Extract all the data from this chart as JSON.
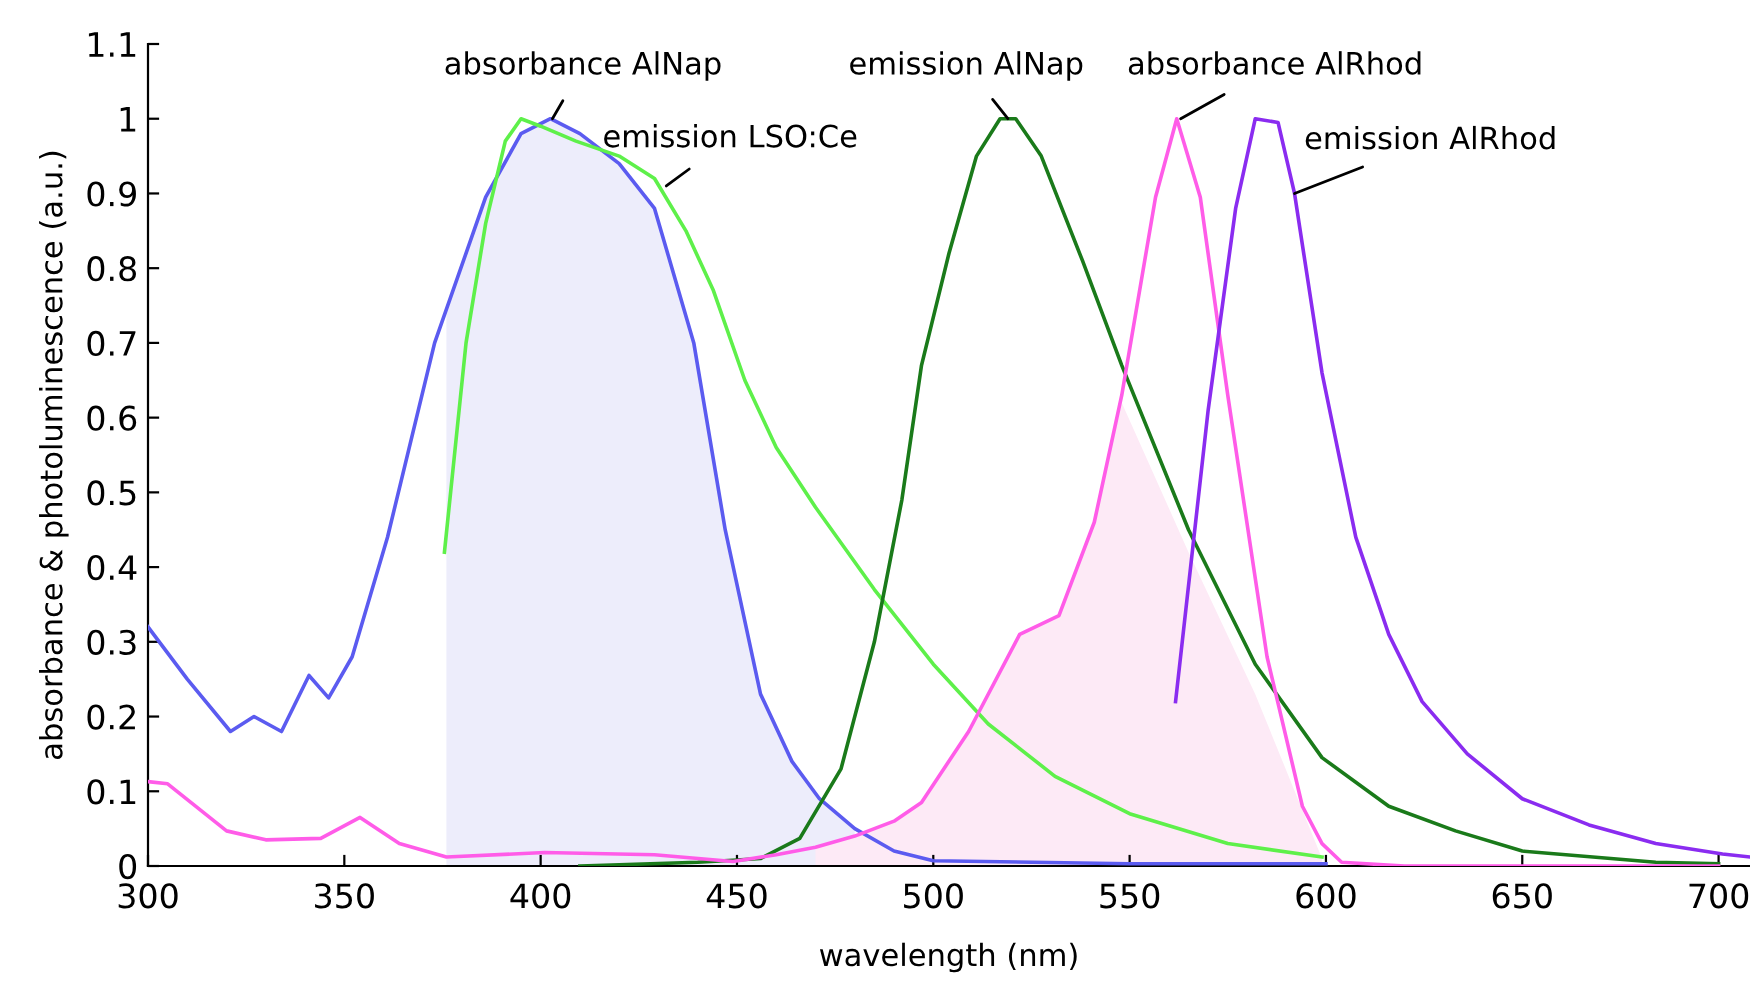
{
  "chart_data": {
    "type": "line",
    "xlabel": "wavelength (nm)",
    "ylabel": "absorbance & photoluminescence (a.u.)",
    "xlim": [
      300,
      708
    ],
    "ylim": [
      0,
      1.1
    ],
    "xticks": [
      300,
      350,
      400,
      450,
      500,
      550,
      600,
      650,
      700
    ],
    "yticks": [
      0,
      0.1,
      0.2,
      0.3,
      0.4,
      0.5,
      0.6,
      0.7,
      0.8,
      0.9,
      1,
      1.1
    ],
    "grid": false,
    "marker": "none",
    "line_style": "solid",
    "series": [
      {
        "type": "area",
        "color": "#ededfb",
        "x": [
          376,
          386,
          395,
          402.5,
          410,
          420,
          429,
          439,
          447,
          456,
          464,
          471,
          480
        ],
        "values": [
          0.75,
          0.895,
          0.98,
          1.0,
          0.98,
          0.94,
          0.88,
          0.7,
          0.45,
          0.23,
          0.14,
          0.09,
          0.05
        ]
      },
      {
        "type": "area",
        "color": "#fdeaf6",
        "x": [
          470,
          480,
          490,
          497,
          509,
          522,
          532,
          541,
          548,
          565,
          582,
          599
        ],
        "values": [
          0.025,
          0.04,
          0.06,
          0.085,
          0.18,
          0.31,
          0.335,
          0.46,
          0.62,
          0.42,
          0.23,
          0.01
        ]
      },
      {
        "color": "#5b5bf0",
        "x": [
          300,
          310,
          321,
          327,
          334,
          341,
          346,
          352,
          361,
          373,
          386,
          395,
          402.5,
          410,
          420,
          429,
          439,
          447,
          456,
          464,
          471,
          480,
          490,
          500,
          550,
          600
        ],
        "values": [
          0.32,
          0.25,
          0.18,
          0.2,
          0.18,
          0.255,
          0.225,
          0.28,
          0.44,
          0.7,
          0.895,
          0.98,
          1.0,
          0.98,
          0.94,
          0.88,
          0.7,
          0.45,
          0.23,
          0.14,
          0.09,
          0.05,
          0.02,
          0.007,
          0.003,
          0.003
        ]
      },
      {
        "color": "#5ef04a",
        "x": [
          375.5,
          381,
          386,
          391,
          395,
          400,
          409,
          420,
          429,
          437,
          444,
          452,
          460,
          470,
          485,
          500,
          514,
          531,
          550,
          575,
          599
        ],
        "values": [
          0.42,
          0.7,
          0.86,
          0.97,
          1.0,
          0.99,
          0.97,
          0.95,
          0.92,
          0.85,
          0.77,
          0.65,
          0.56,
          0.48,
          0.37,
          0.27,
          0.19,
          0.12,
          0.07,
          0.03,
          0.012
        ]
      },
      {
        "color": "#1a7a1a",
        "x": [
          410,
          440,
          450,
          456,
          466,
          476.5,
          485,
          492,
          497,
          504,
          511,
          517,
          521,
          527.5,
          538,
          548,
          565,
          582,
          599,
          616,
          633,
          650,
          684,
          700
        ],
        "values": [
          0,
          0.005,
          0.008,
          0.01,
          0.037,
          0.13,
          0.3,
          0.49,
          0.67,
          0.82,
          0.95,
          1.0,
          1.0,
          0.95,
          0.81,
          0.67,
          0.45,
          0.27,
          0.145,
          0.08,
          0.047,
          0.02,
          0.005,
          0.003
        ]
      },
      {
        "color": "#ff5ce8",
        "x": [
          300,
          305,
          320,
          330,
          344,
          354,
          364,
          376,
          401,
          429,
          449,
          460,
          470,
          480,
          490,
          497,
          509,
          522,
          532,
          541,
          548,
          556.6,
          562,
          568,
          575,
          585,
          594,
          599,
          604,
          620,
          700
        ],
        "values": [
          0.113,
          0.11,
          0.047,
          0.035,
          0.037,
          0.065,
          0.03,
          0.012,
          0.018,
          0.015,
          0.006,
          0.015,
          0.025,
          0.04,
          0.06,
          0.085,
          0.18,
          0.31,
          0.335,
          0.46,
          0.63,
          0.895,
          1.0,
          0.895,
          0.63,
          0.28,
          0.08,
          0.03,
          0.005,
          0,
          0
        ]
      },
      {
        "color": "#8a2cf0",
        "x": [
          561.7,
          570,
          577,
          582,
          587.8,
          592,
          599,
          607.6,
          616,
          624.5,
          636,
          650,
          667,
          684,
          701,
          708
        ],
        "values": [
          0.22,
          0.61,
          0.88,
          1.0,
          0.995,
          0.9,
          0.66,
          0.44,
          0.31,
          0.22,
          0.15,
          0.09,
          0.055,
          0.03,
          0.016,
          0.012
        ]
      }
    ],
    "annotations": [
      {
        "text": "absorbance AlNap",
        "x": 403,
        "y": 1.0
      },
      {
        "text": "emission LSO:Ce",
        "x": 432,
        "y": 0.91
      },
      {
        "text": "emission AlNap",
        "x": 519,
        "y": 1.0
      },
      {
        "text": "absorbance AlRhod",
        "x": 563,
        "y": 1.0
      },
      {
        "text": "emission AlRhod",
        "x": 592,
        "y": 0.9
      }
    ]
  }
}
